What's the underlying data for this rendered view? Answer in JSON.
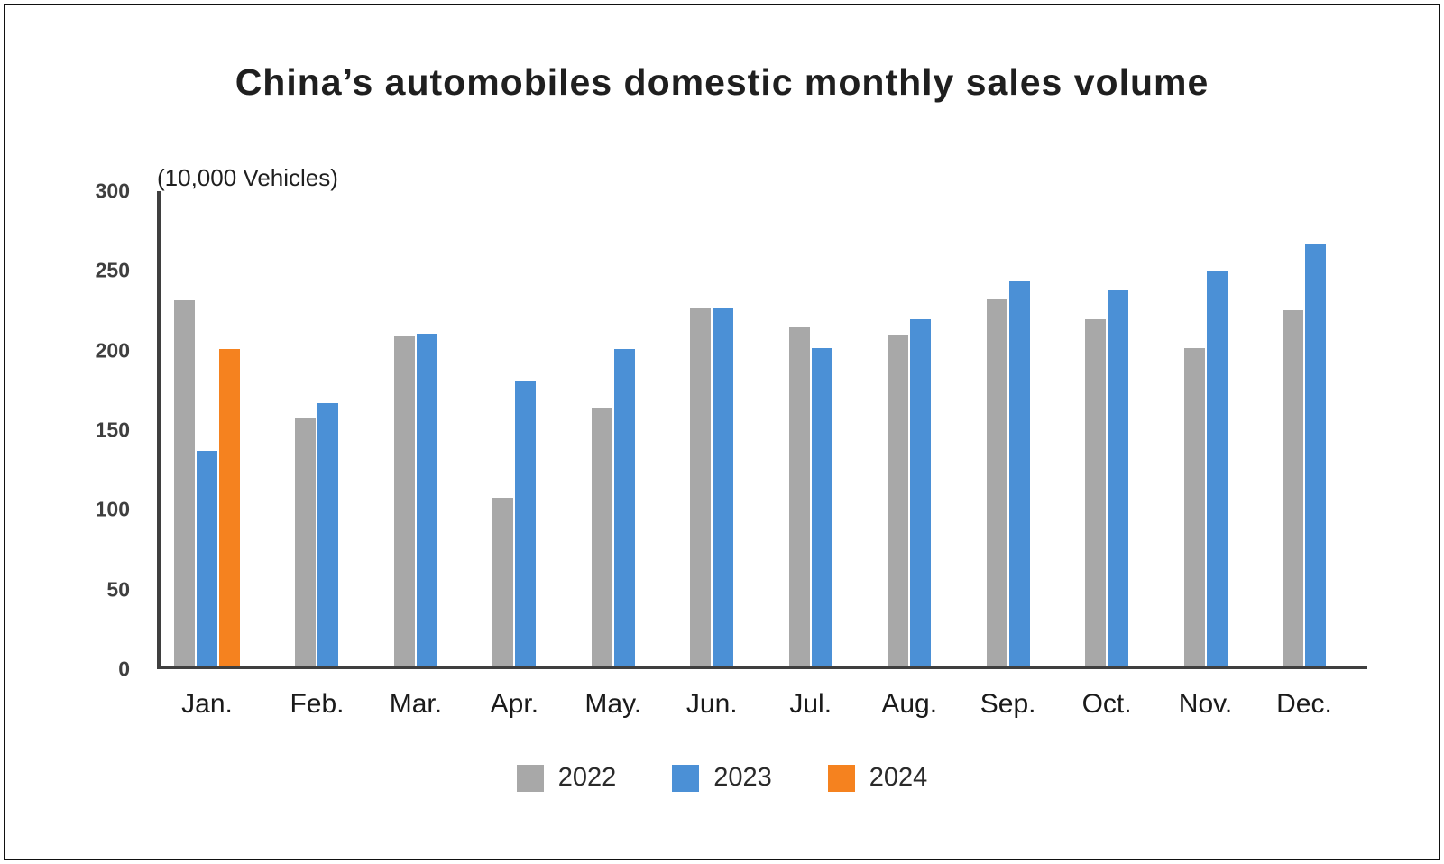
{
  "title": "China’s automobiles domestic monthly sales volume",
  "unit_label": "(10,000 Vehicles)",
  "chart_data": {
    "type": "bar",
    "categories": [
      "Jan.",
      "Feb.",
      "Mar.",
      "Apr.",
      "May.",
      "Jun.",
      "Jul.",
      "Aug.",
      "Sep.",
      "Oct.",
      "Nov.",
      "Dec."
    ],
    "series": [
      {
        "name": "2022",
        "color": "#a8a8a8",
        "values": [
          231,
          157,
          208,
          106,
          163,
          226,
          214,
          209,
          232,
          219,
          201,
          225
        ]
      },
      {
        "name": "2023",
        "color": "#4b90d6",
        "values": [
          136,
          166,
          210,
          180,
          200,
          226,
          201,
          219,
          243,
          238,
          250,
          267
        ]
      },
      {
        "name": "2024",
        "color": "#f5821f",
        "values": [
          200,
          null,
          null,
          null,
          null,
          null,
          null,
          null,
          null,
          null,
          null,
          null
        ]
      }
    ],
    "title": "China’s automobiles domestic monthly sales volume",
    "xlabel": "",
    "ylabel": "(10,000 Vehicles)",
    "ylim": [
      0,
      300
    ],
    "yticks": [
      0,
      50,
      100,
      150,
      200,
      250,
      300
    ],
    "grid": false,
    "legend_position": "bottom"
  }
}
